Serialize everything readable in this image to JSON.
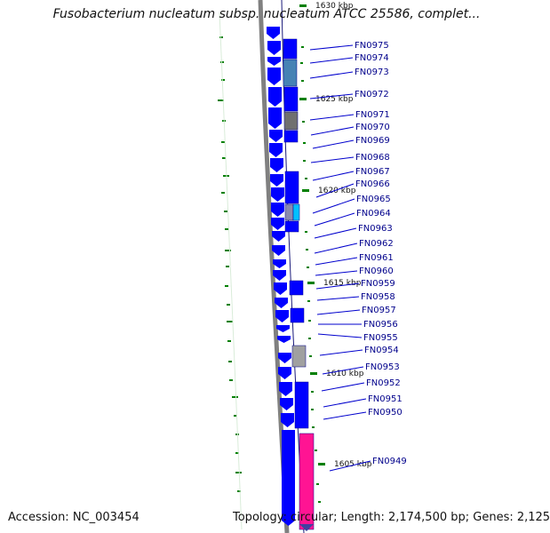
{
  "title": "Fusobacterium nucleatum subsp. nucleatum ATCC 25586, complet...",
  "accession_text": "Accession: NC_003454",
  "summary_text": "Topology: circular; Length: 2,174,500 bp; Genes: 2,125",
  "colors": {
    "backbone": "#808080",
    "forward_gene": "#0000ff",
    "tick": "#008000",
    "label": "#00008b",
    "label_line": "#0000cd"
  },
  "scale_ticks": [
    {
      "label": "1630 kbp"
    },
    {
      "label": "1625 kbp"
    },
    {
      "label": "1620 kbp"
    },
    {
      "label": "1615 kbp"
    },
    {
      "label": "1610 kbp"
    },
    {
      "label": "1605 kbp"
    }
  ],
  "gene_labels": [
    "FN0975",
    "FN0974",
    "FN0973",
    "FN0972",
    "FN0971",
    "FN0970",
    "FN0969",
    "FN0968",
    "FN0967",
    "FN0966",
    "FN0965",
    "FN0964",
    "FN0963",
    "FN0962",
    "FN0961",
    "FN0960",
    "FN0959",
    "FN0958",
    "FN0957",
    "FN0956",
    "FN0955",
    "FN0954",
    "FN0953",
    "FN0952",
    "FN0951",
    "FN0950",
    "FN0949"
  ]
}
